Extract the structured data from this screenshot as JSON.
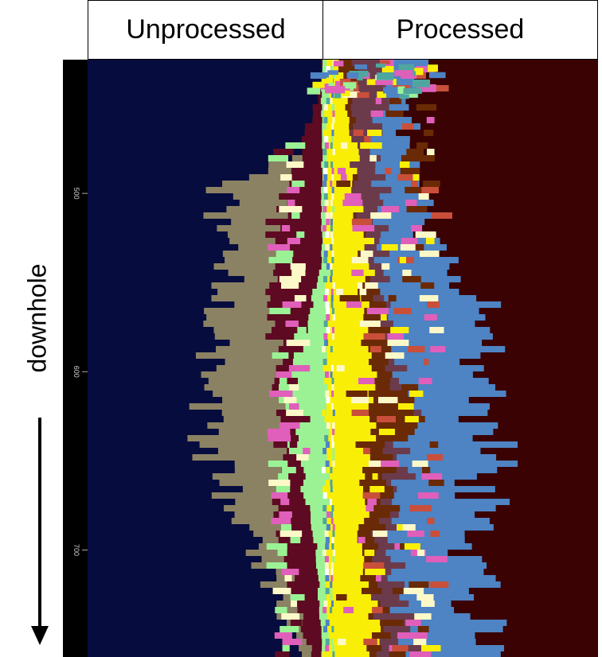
{
  "headers": {
    "left": "Unprocessed",
    "right": "Processed"
  },
  "axis_label": "downhole",
  "colors": {
    "background_left": "#070c3e",
    "background_right": "#3a0202",
    "tan": "#8b8263",
    "maroon": "#5e0a22",
    "pink": "#e05fba",
    "cream": "#fcf8c8",
    "green": "#9af295",
    "teal": "#4fa6a0",
    "blue": "#4e83c4",
    "brown": "#6a2a05",
    "mauve": "#6b3b4c",
    "yellow": "#f9ef06",
    "red": "#c94f3a",
    "white": "#ffffff"
  },
  "chart_data": {
    "type": "heatmap",
    "title": "",
    "xlabel": "",
    "ylabel": "downhole",
    "ylim": [
      425,
      760
    ],
    "yticks": [
      500,
      600,
      700
    ],
    "panels": [
      "Unprocessed",
      "Processed"
    ],
    "series": [
      {
        "name": "Unprocessed",
        "layers": [
          {
            "color": "tan",
            "extent_profile": [
              [
                470,
                0.0
              ],
              [
                500,
                0.45
              ],
              [
                560,
                0.42
              ],
              [
                600,
                0.5
              ],
              [
                650,
                0.48
              ],
              [
                700,
                0.3
              ],
              [
                760,
                0.12
              ]
            ]
          },
          {
            "color": "maroon",
            "extent_profile": [
              [
                440,
                0.02
              ],
              [
                480,
                0.12
              ],
              [
                520,
                0.22
              ],
              [
                580,
                0.22
              ],
              [
                620,
                0.18
              ],
              [
                680,
                0.22
              ],
              [
                760,
                0.06
              ]
            ]
          },
          {
            "color": "green",
            "extent_profile": [
              [
                540,
                0.02
              ],
              [
                580,
                0.1
              ],
              [
                610,
                0.18
              ],
              [
                640,
                0.14
              ],
              [
                700,
                0.04
              ],
              [
                760,
                0.02
              ]
            ]
          }
        ]
      },
      {
        "name": "Processed",
        "layers": [
          {
            "color": "blue",
            "extent_profile": [
              [
                490,
                0.32
              ],
              [
                530,
                0.4
              ],
              [
                560,
                0.55
              ],
              [
                600,
                0.62
              ],
              [
                650,
                0.6
              ],
              [
                700,
                0.55
              ],
              [
                760,
                0.58
              ]
            ]
          },
          {
            "color": "mauve",
            "extent_profile": [
              [
                560,
                0.2
              ],
              [
                620,
                0.3
              ],
              [
                700,
                0.25
              ],
              [
                760,
                0.32
              ]
            ]
          },
          {
            "color": "brown",
            "extent_profile": [
              [
                500,
                0.1
              ],
              [
                560,
                0.18
              ],
              [
                620,
                0.3
              ],
              [
                700,
                0.16
              ],
              [
                760,
                0.22
              ]
            ]
          },
          {
            "color": "yellow",
            "extent_profile": [
              [
                430,
                0.05
              ],
              [
                470,
                0.1
              ],
              [
                600,
                0.16
              ],
              [
                700,
                0.14
              ],
              [
                760,
                0.18
              ]
            ]
          }
        ]
      }
    ]
  }
}
